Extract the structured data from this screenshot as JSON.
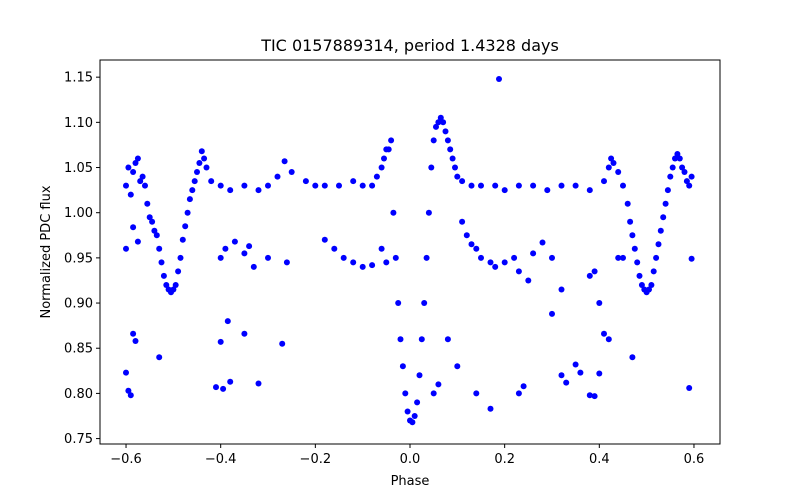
{
  "chart_data": {
    "type": "scatter",
    "title": "TIC 0157889314, period 1.4328 days",
    "xlabel": "Phase",
    "ylabel": "Normalized PDC flux",
    "xlim": [
      -0.655,
      0.655
    ],
    "ylim": [
      0.744,
      1.169
    ],
    "xticks": [
      -0.6,
      -0.4,
      -0.2,
      0.0,
      0.2,
      0.4,
      0.6
    ],
    "xtick_labels": [
      "−0.6",
      "−0.4",
      "−0.2",
      "0.0",
      "0.2",
      "0.4",
      "0.6"
    ],
    "yticks": [
      0.75,
      0.8,
      0.85,
      0.9,
      0.95,
      1.0,
      1.05,
      1.1,
      1.15
    ],
    "ytick_labels": [
      "0.75",
      "0.80",
      "0.85",
      "0.90",
      "0.95",
      "1.00",
      "1.05",
      "1.10",
      "1.15"
    ],
    "grid": false,
    "marker_color": "#0000ff",
    "series": [
      {
        "points": [
          [
            -0.6,
            1.03
          ],
          [
            -0.595,
            1.05
          ],
          [
            -0.59,
            1.02
          ],
          [
            -0.585,
            1.045
          ],
          [
            -0.58,
            1.055
          ],
          [
            -0.575,
            1.06
          ],
          [
            -0.57,
            1.035
          ],
          [
            -0.565,
            1.04
          ],
          [
            -0.56,
            1.03
          ],
          [
            -0.555,
            1.01
          ],
          [
            -0.55,
            0.995
          ],
          [
            -0.545,
            0.99
          ],
          [
            -0.54,
            0.98
          ],
          [
            -0.535,
            0.975
          ],
          [
            -0.53,
            0.96
          ],
          [
            -0.525,
            0.945
          ],
          [
            -0.52,
            0.93
          ],
          [
            -0.515,
            0.92
          ],
          [
            -0.51,
            0.915
          ],
          [
            -0.505,
            0.912
          ],
          [
            -0.5,
            0.915
          ],
          [
            -0.495,
            0.92
          ],
          [
            -0.49,
            0.935
          ],
          [
            -0.485,
            0.95
          ],
          [
            -0.48,
            0.97
          ],
          [
            -0.475,
            0.985
          ],
          [
            -0.47,
            1.0
          ],
          [
            -0.465,
            1.015
          ],
          [
            -0.46,
            1.025
          ],
          [
            -0.455,
            1.035
          ],
          [
            -0.45,
            1.045
          ],
          [
            -0.445,
            1.055
          ],
          [
            -0.44,
            1.068
          ],
          [
            -0.435,
            1.06
          ],
          [
            -0.43,
            1.05
          ],
          [
            -0.42,
            1.035
          ],
          [
            -0.4,
            1.03
          ],
          [
            -0.38,
            1.025
          ],
          [
            -0.35,
            1.03
          ],
          [
            -0.32,
            1.025
          ],
          [
            -0.3,
            1.03
          ],
          [
            -0.28,
            1.04
          ],
          [
            -0.265,
            1.057
          ],
          [
            -0.25,
            1.045
          ],
          [
            -0.22,
            1.035
          ],
          [
            -0.2,
            1.03
          ],
          [
            -0.18,
            1.03
          ],
          [
            -0.15,
            1.03
          ],
          [
            -0.12,
            1.035
          ],
          [
            -0.1,
            1.03
          ],
          [
            -0.08,
            1.03
          ],
          [
            -0.07,
            1.04
          ],
          [
            -0.06,
            1.05
          ],
          [
            -0.055,
            1.06
          ],
          [
            -0.05,
            1.07
          ],
          [
            -0.045,
            1.07
          ],
          [
            -0.04,
            1.08
          ],
          [
            -0.035,
            1.0
          ],
          [
            -0.03,
            0.95
          ],
          [
            -0.025,
            0.9
          ],
          [
            -0.02,
            0.86
          ],
          [
            -0.015,
            0.83
          ],
          [
            -0.01,
            0.8
          ],
          [
            -0.005,
            0.78
          ],
          [
            0.0,
            0.77
          ],
          [
            0.005,
            0.768
          ],
          [
            0.01,
            0.775
          ],
          [
            0.015,
            0.79
          ],
          [
            0.02,
            0.82
          ],
          [
            0.025,
            0.86
          ],
          [
            0.03,
            0.9
          ],
          [
            0.035,
            0.95
          ],
          [
            0.04,
            1.0
          ],
          [
            0.045,
            1.05
          ],
          [
            0.05,
            1.08
          ],
          [
            0.055,
            1.095
          ],
          [
            0.06,
            1.1
          ],
          [
            0.065,
            1.105
          ],
          [
            0.07,
            1.1
          ],
          [
            0.075,
            1.09
          ],
          [
            0.08,
            1.08
          ],
          [
            0.085,
            1.07
          ],
          [
            0.09,
            1.06
          ],
          [
            0.095,
            1.05
          ],
          [
            0.1,
            1.04
          ],
          [
            0.11,
            1.035
          ],
          [
            0.13,
            1.03
          ],
          [
            0.15,
            1.03
          ],
          [
            0.18,
            1.03
          ],
          [
            0.2,
            1.025
          ],
          [
            0.23,
            1.03
          ],
          [
            0.26,
            1.03
          ],
          [
            0.29,
            1.025
          ],
          [
            0.32,
            1.03
          ],
          [
            0.35,
            1.03
          ],
          [
            0.38,
            1.025
          ],
          [
            0.41,
            1.035
          ],
          [
            0.42,
            1.05
          ],
          [
            0.425,
            1.06
          ],
          [
            0.43,
            1.055
          ],
          [
            0.44,
            1.045
          ],
          [
            0.45,
            1.03
          ],
          [
            0.46,
            1.01
          ],
          [
            0.465,
            0.99
          ],
          [
            0.47,
            0.975
          ],
          [
            0.475,
            0.96
          ],
          [
            0.48,
            0.945
          ],
          [
            0.485,
            0.93
          ],
          [
            0.49,
            0.92
          ],
          [
            0.495,
            0.915
          ],
          [
            0.5,
            0.912
          ],
          [
            0.505,
            0.915
          ],
          [
            0.51,
            0.92
          ],
          [
            0.515,
            0.935
          ],
          [
            0.52,
            0.95
          ],
          [
            0.525,
            0.965
          ],
          [
            0.53,
            0.98
          ],
          [
            0.535,
            0.995
          ],
          [
            0.54,
            1.01
          ],
          [
            0.545,
            1.025
          ],
          [
            0.55,
            1.04
          ],
          [
            0.555,
            1.05
          ],
          [
            0.56,
            1.06
          ],
          [
            0.565,
            1.065
          ],
          [
            0.57,
            1.06
          ],
          [
            0.575,
            1.05
          ],
          [
            0.58,
            1.045
          ],
          [
            0.585,
            1.035
          ],
          [
            0.59,
            1.03
          ],
          [
            0.595,
            1.04
          ],
          [
            -0.6,
            0.96
          ],
          [
            -0.6,
            0.823
          ],
          [
            -0.595,
            0.803
          ],
          [
            -0.59,
            0.798
          ],
          [
            -0.585,
            0.866
          ],
          [
            -0.58,
            0.858
          ],
          [
            -0.575,
            0.968
          ],
          [
            -0.585,
            0.984
          ],
          [
            -0.53,
            0.84
          ],
          [
            -0.41,
            0.807
          ],
          [
            -0.395,
            0.805
          ],
          [
            -0.4,
            0.857
          ],
          [
            -0.385,
            0.88
          ],
          [
            -0.38,
            0.813
          ],
          [
            -0.35,
            0.866
          ],
          [
            -0.32,
            0.811
          ],
          [
            -0.27,
            0.855
          ],
          [
            -0.4,
            0.95
          ],
          [
            -0.39,
            0.96
          ],
          [
            -0.37,
            0.968
          ],
          [
            -0.35,
            0.955
          ],
          [
            -0.34,
            0.963
          ],
          [
            -0.3,
            0.95
          ],
          [
            -0.26,
            0.945
          ],
          [
            -0.18,
            0.97
          ],
          [
            -0.16,
            0.96
          ],
          [
            -0.14,
            0.95
          ],
          [
            -0.12,
            0.945
          ],
          [
            -0.1,
            0.94
          ],
          [
            -0.08,
            0.942
          ],
          [
            0.11,
            0.99
          ],
          [
            0.12,
            0.975
          ],
          [
            0.13,
            0.965
          ],
          [
            0.14,
            0.96
          ],
          [
            0.15,
            0.95
          ],
          [
            0.17,
            0.945
          ],
          [
            0.18,
            0.94
          ],
          [
            0.2,
            0.945
          ],
          [
            0.22,
            0.95
          ],
          [
            0.23,
            0.935
          ],
          [
            0.25,
            0.925
          ],
          [
            0.26,
            0.955
          ],
          [
            0.28,
            0.967
          ],
          [
            0.3,
            0.95
          ],
          [
            0.32,
            0.82
          ],
          [
            0.33,
            0.812
          ],
          [
            0.35,
            0.832
          ],
          [
            0.36,
            0.823
          ],
          [
            0.38,
            0.798
          ],
          [
            0.39,
            0.797
          ],
          [
            0.4,
            0.822
          ],
          [
            0.41,
            0.866
          ],
          [
            0.42,
            0.86
          ],
          [
            0.44,
            0.95
          ],
          [
            0.45,
            0.95
          ],
          [
            0.47,
            0.84
          ],
          [
            0.59,
            0.806
          ],
          [
            0.595,
            0.949
          ],
          [
            0.188,
            1.148
          ],
          [
            0.23,
            0.8
          ],
          [
            0.17,
            0.783
          ],
          [
            0.14,
            0.8
          ],
          [
            0.24,
            0.808
          ],
          [
            0.3,
            0.888
          ],
          [
            0.32,
            0.915
          ],
          [
            0.38,
            0.93
          ],
          [
            0.39,
            0.935
          ],
          [
            0.4,
            0.9
          ],
          [
            -0.33,
            0.94
          ],
          [
            -0.06,
            0.96
          ],
          [
            -0.05,
            0.945
          ],
          [
            0.08,
            0.86
          ],
          [
            0.1,
            0.83
          ],
          [
            0.05,
            0.8
          ],
          [
            0.06,
            0.81
          ]
        ]
      }
    ]
  }
}
